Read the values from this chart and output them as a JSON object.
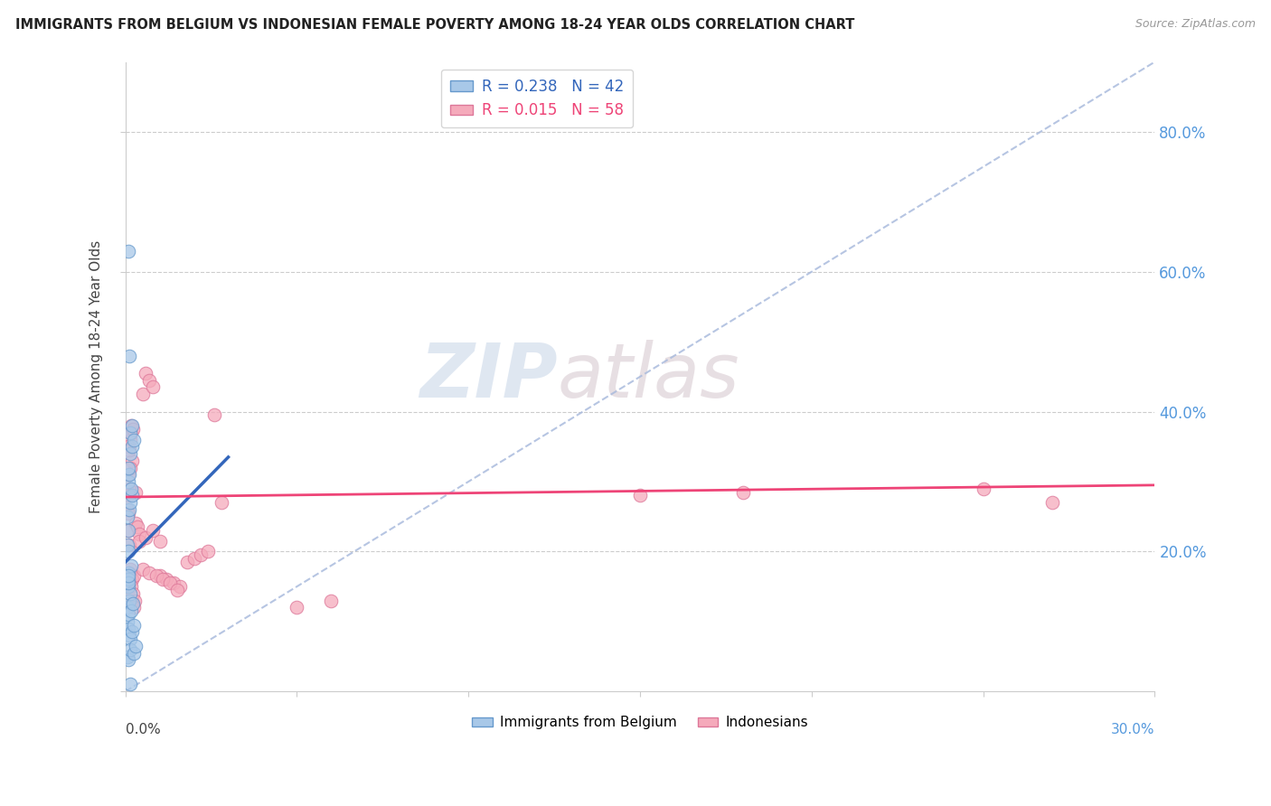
{
  "title": "IMMIGRANTS FROM BELGIUM VS INDONESIAN FEMALE POVERTY AMONG 18-24 YEAR OLDS CORRELATION CHART",
  "source": "Source: ZipAtlas.com",
  "ylabel": "Female Poverty Among 18-24 Year Olds",
  "xlim": [
    0.0,
    0.3
  ],
  "ylim": [
    0.0,
    0.9
  ],
  "ytick_vals": [
    0.0,
    0.2,
    0.4,
    0.6,
    0.8
  ],
  "ytick_labels_right": [
    "",
    "20.0%",
    "40.0%",
    "60.0%",
    "80.0%"
  ],
  "watermark_zip": "ZIP",
  "watermark_atlas": "atlas",
  "blue_R": 0.238,
  "blue_N": 42,
  "pink_R": 0.015,
  "pink_N": 58,
  "blue_color": "#a8c8e8",
  "blue_edge": "#6699cc",
  "blue_line_color": "#3366bb",
  "pink_color": "#f5aabb",
  "pink_edge": "#dd7799",
  "pink_line_color": "#ee4477",
  "grid_color": "#cccccc",
  "diag_color": "#aabbdd",
  "right_tick_color": "#5599dd",
  "blue_trend_x0": 0.0,
  "blue_trend_y0": 0.185,
  "blue_trend_x1": 0.03,
  "blue_trend_y1": 0.335,
  "pink_trend_x0": 0.0,
  "pink_trend_y0": 0.278,
  "pink_trend_x1": 0.3,
  "pink_trend_y1": 0.295,
  "blue_scatter_x": [
    0.0005,
    0.001,
    0.0005,
    0.0008,
    0.0012,
    0.0015,
    0.001,
    0.0018,
    0.0015,
    0.002,
    0.001,
    0.0008,
    0.0005,
    0.0012,
    0.0015,
    0.0008,
    0.0005,
    0.0008,
    0.001,
    0.0012,
    0.0015,
    0.002,
    0.0025,
    0.0018,
    0.0022,
    0.0008,
    0.0012,
    0.0005,
    0.001,
    0.0015,
    0.0025,
    0.003,
    0.002,
    0.0018,
    0.0012,
    0.001,
    0.0015,
    0.002,
    0.0025,
    0.001,
    0.0008,
    0.0015
  ],
  "blue_scatter_y": [
    0.25,
    0.23,
    0.21,
    0.2,
    0.26,
    0.27,
    0.17,
    0.18,
    0.34,
    0.35,
    0.15,
    0.16,
    0.12,
    0.13,
    0.14,
    0.3,
    0.1,
    0.11,
    0.09,
    0.08,
    0.075,
    0.085,
    0.095,
    0.115,
    0.125,
    0.63,
    0.48,
    0.05,
    0.045,
    0.06,
    0.055,
    0.065,
    0.28,
    0.29,
    0.31,
    0.32,
    0.37,
    0.38,
    0.36,
    0.155,
    0.165,
    0.01
  ],
  "pink_scatter_x": [
    0.0005,
    0.0008,
    0.001,
    0.0012,
    0.0015,
    0.0018,
    0.002,
    0.0008,
    0.0012,
    0.0015,
    0.002,
    0.0025,
    0.003,
    0.0018,
    0.0022,
    0.0028,
    0.0015,
    0.0012,
    0.001,
    0.002,
    0.0025,
    0.0008,
    0.0012,
    0.0018,
    0.0022,
    0.003,
    0.0035,
    0.004,
    0.005,
    0.006,
    0.007,
    0.008,
    0.01,
    0.012,
    0.014,
    0.016,
    0.018,
    0.02,
    0.022,
    0.024,
    0.026,
    0.028,
    0.005,
    0.007,
    0.009,
    0.011,
    0.013,
    0.015,
    0.004,
    0.006,
    0.008,
    0.01,
    0.18,
    0.25,
    0.27,
    0.15,
    0.05,
    0.06
  ],
  "pink_scatter_y": [
    0.26,
    0.255,
    0.23,
    0.21,
    0.36,
    0.38,
    0.33,
    0.31,
    0.17,
    0.175,
    0.16,
    0.165,
    0.285,
    0.15,
    0.14,
    0.13,
    0.32,
    0.29,
    0.28,
    0.125,
    0.12,
    0.35,
    0.345,
    0.37,
    0.375,
    0.24,
    0.235,
    0.225,
    0.425,
    0.455,
    0.445,
    0.435,
    0.165,
    0.16,
    0.155,
    0.15,
    0.185,
    0.19,
    0.195,
    0.2,
    0.395,
    0.27,
    0.175,
    0.17,
    0.165,
    0.16,
    0.155,
    0.145,
    0.215,
    0.22,
    0.23,
    0.215,
    0.285,
    0.29,
    0.27,
    0.28,
    0.12,
    0.13
  ]
}
